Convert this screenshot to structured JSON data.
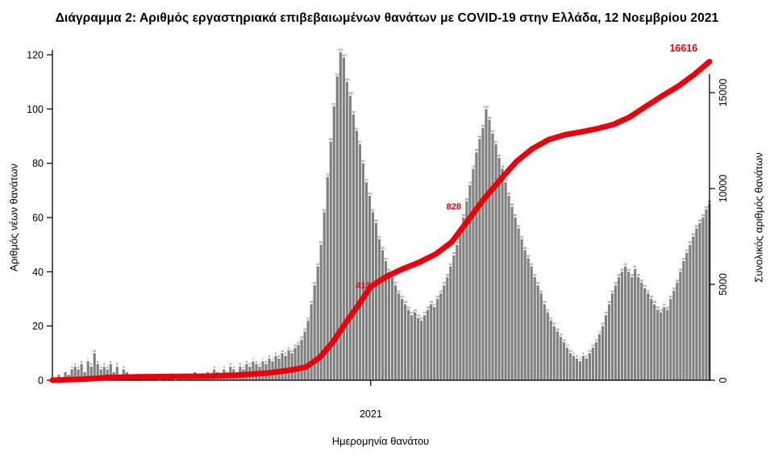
{
  "title": "Διάγραμμα 2: Αριθμός εργαστηριακά επιβεβαιωμένων θανάτων με COVID-19 στην Ελλάδα, 12 Νοεμβρίου 2021",
  "colors": {
    "bar": "#808080",
    "bar_label": "#3a3a3a",
    "line": "#e8000d",
    "annotation": "#e8000d",
    "axis": "#000000"
  },
  "chart_data": {
    "type": "combo-bar-line",
    "title": "Διάγραμμα 2: Αριθμός εργαστηριακά επιβεβαιωμένων θανάτων με COVID-19 στην Ελλάδα, 12 Νοεμβρίου 2021",
    "x_axis": {
      "label": "Ημερομηνία θανάτου",
      "range_days": [
        0,
        609
      ],
      "ticks": [
        {
          "day": 295,
          "label": "2021"
        }
      ]
    },
    "left_axis": {
      "label": "Αριθμός νέων θανάτων",
      "ticks": [
        0,
        20,
        40,
        60,
        80,
        100,
        120
      ],
      "range": [
        0,
        124
      ]
    },
    "right_axis": {
      "label": "Συνολικός αριθμός θανάτων",
      "ticks": [
        0,
        5000,
        10000,
        15000
      ],
      "range": [
        0,
        16800
      ]
    },
    "grid": false,
    "legend": "none",
    "series": [
      {
        "name": "daily_deaths",
        "type": "bar",
        "axis": "left",
        "x_start": 0,
        "x_step_days": 3,
        "values": [
          0,
          1,
          2,
          1,
          3,
          2,
          4,
          5,
          4,
          6,
          3,
          7,
          5,
          10,
          6,
          4,
          5,
          4,
          6,
          3,
          5,
          2,
          4,
          3,
          2,
          1,
          2,
          1,
          0,
          1,
          2,
          1,
          1,
          0,
          1,
          1,
          2,
          1,
          0,
          1,
          1,
          1,
          2,
          1,
          3,
          2,
          1,
          2,
          3,
          2,
          4,
          3,
          2,
          4,
          3,
          5,
          4,
          3,
          5,
          4,
          6,
          5,
          7,
          6,
          5,
          7,
          6,
          8,
          7,
          9,
          8,
          10,
          9,
          11,
          10,
          12,
          13,
          15,
          18,
          22,
          28,
          35,
          42,
          50,
          62,
          75,
          88,
          101,
          112,
          121,
          119,
          110,
          105,
          98,
          92,
          87,
          80,
          73,
          68,
          62,
          58,
          52,
          48,
          44,
          40,
          38,
          35,
          32,
          30,
          28,
          26,
          24,
          25,
          23,
          22,
          24,
          26,
          28,
          27,
          30,
          32,
          35,
          38,
          42,
          46,
          50,
          55,
          60,
          66,
          72,
          78,
          84,
          89,
          93,
          100,
          96,
          91,
          87,
          82,
          78,
          73,
          68,
          64,
          60,
          56,
          52,
          48,
          45,
          42,
          38,
          35,
          32,
          28,
          25,
          22,
          20,
          18,
          16,
          14,
          12,
          10,
          9,
          8,
          7,
          9,
          8,
          10,
          12,
          14,
          17,
          20,
          24,
          28,
          32,
          35,
          38,
          40,
          42,
          40,
          38,
          41,
          38,
          36,
          34,
          32,
          30,
          28,
          26,
          25,
          27,
          26,
          30,
          33,
          36,
          40,
          44,
          47,
          50,
          53,
          56,
          58,
          60,
          63,
          65
        ]
      },
      {
        "name": "cumulative_deaths",
        "type": "line",
        "axis": "right",
        "points": [
          [
            0,
            0
          ],
          [
            30,
            60
          ],
          [
            50,
            140
          ],
          [
            80,
            180
          ],
          [
            110,
            195
          ],
          [
            140,
            210
          ],
          [
            170,
            260
          ],
          [
            200,
            380
          ],
          [
            220,
            520
          ],
          [
            235,
            680
          ],
          [
            248,
            1200
          ],
          [
            260,
            2000
          ],
          [
            272,
            3000
          ],
          [
            284,
            3950
          ],
          [
            295,
            4880
          ],
          [
            310,
            5420
          ],
          [
            325,
            5810
          ],
          [
            340,
            6150
          ],
          [
            355,
            6570
          ],
          [
            370,
            7200
          ],
          [
            385,
            8320
          ],
          [
            400,
            9450
          ],
          [
            415,
            10450
          ],
          [
            430,
            11400
          ],
          [
            445,
            12080
          ],
          [
            460,
            12550
          ],
          [
            475,
            12800
          ],
          [
            490,
            12950
          ],
          [
            505,
            13120
          ],
          [
            520,
            13340
          ],
          [
            535,
            13720
          ],
          [
            550,
            14280
          ],
          [
            565,
            14820
          ],
          [
            580,
            15330
          ],
          [
            595,
            15950
          ],
          [
            609,
            16616
          ]
        ]
      }
    ],
    "annotations": [
      {
        "text": "413",
        "day": 288,
        "value": 4800,
        "size": 11
      },
      {
        "text": "828",
        "day": 372,
        "value": 8900,
        "size": 11
      },
      {
        "text": "16616",
        "day": 585,
        "value": 17150,
        "size": 12.5
      }
    ]
  }
}
